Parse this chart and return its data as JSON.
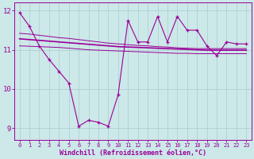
{
  "x": [
    0,
    1,
    2,
    3,
    4,
    5,
    6,
    7,
    8,
    9,
    10,
    11,
    12,
    13,
    14,
    15,
    16,
    17,
    18,
    19,
    20,
    21,
    22,
    23
  ],
  "y_main": [
    11.95,
    11.6,
    11.1,
    10.75,
    10.45,
    10.15,
    9.05,
    9.2,
    9.15,
    9.05,
    9.85,
    11.75,
    11.2,
    11.2,
    11.85,
    11.2,
    11.85,
    11.5,
    11.5,
    11.1,
    10.85,
    11.2,
    11.15,
    11.15
  ],
  "y_avg": [
    11.28,
    11.26,
    11.24,
    11.22,
    11.2,
    11.18,
    11.16,
    11.14,
    11.12,
    11.1,
    11.08,
    11.07,
    11.06,
    11.05,
    11.04,
    11.03,
    11.02,
    11.01,
    11.0,
    10.99,
    10.99,
    10.99,
    10.99,
    10.99
  ],
  "y_upper": [
    11.42,
    11.4,
    11.37,
    11.34,
    11.31,
    11.29,
    11.26,
    11.23,
    11.2,
    11.17,
    11.15,
    11.13,
    11.11,
    11.1,
    11.08,
    11.07,
    11.05,
    11.04,
    11.03,
    11.03,
    11.03,
    11.03,
    11.03,
    11.03
  ],
  "y_lower": [
    11.1,
    11.09,
    11.08,
    11.07,
    11.06,
    11.04,
    11.02,
    11.0,
    10.99,
    10.98,
    10.97,
    10.96,
    10.95,
    10.94,
    10.93,
    10.92,
    10.91,
    10.91,
    10.9,
    10.9,
    10.9,
    10.9,
    10.9,
    10.9
  ],
  "line_color": "#990099",
  "bg_color": "#cce8e8",
  "grid_color": "#aacccc",
  "xlabel": "Windchill (Refroidissement éolien,°C)",
  "ylim": [
    8.7,
    12.2
  ],
  "xlim_min": -0.5,
  "xlim_max": 23.5,
  "yticks": [
    9,
    10,
    11,
    12
  ],
  "xticks": [
    0,
    1,
    2,
    3,
    4,
    5,
    6,
    7,
    8,
    9,
    10,
    11,
    12,
    13,
    14,
    15,
    16,
    17,
    18,
    19,
    20,
    21,
    22,
    23
  ],
  "xtick_labels": [
    "0",
    "1",
    "2",
    "3",
    "4",
    "5",
    "6",
    "7",
    "8",
    "9",
    "10",
    "11",
    "12",
    "13",
    "14",
    "15",
    "16",
    "17",
    "18",
    "19",
    "20",
    "21",
    "22",
    "23"
  ]
}
